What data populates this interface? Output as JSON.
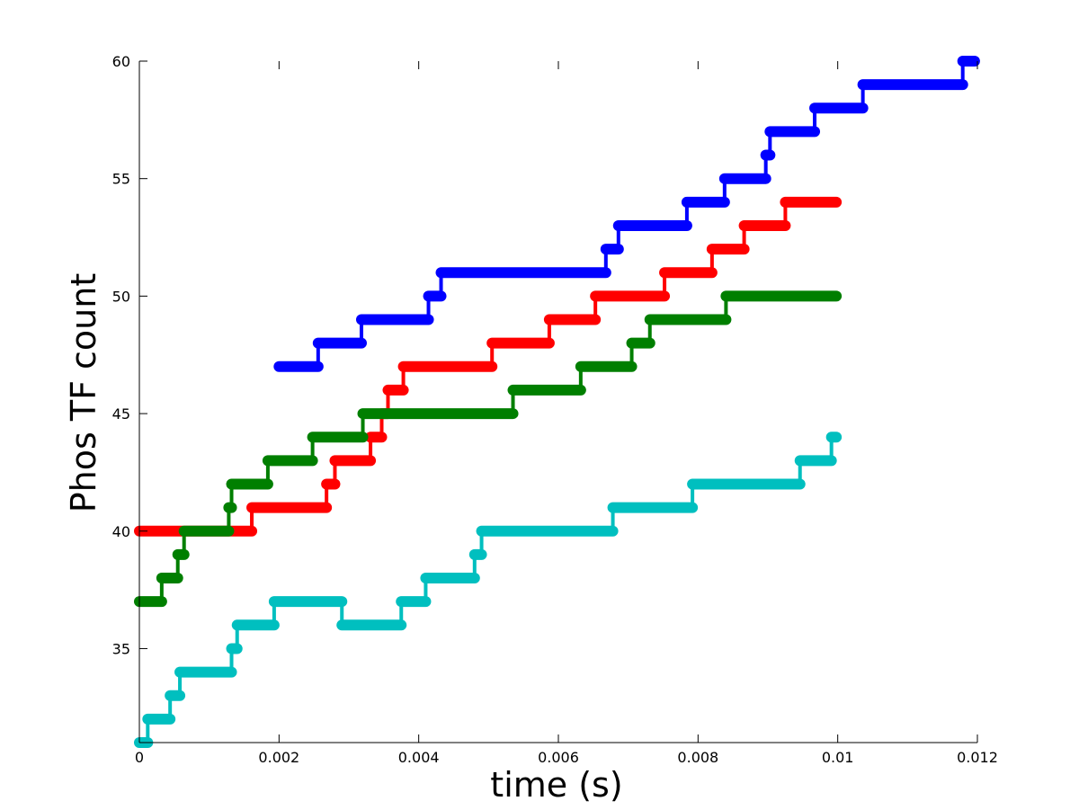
{
  "chart_data": {
    "type": "line",
    "title": "",
    "xlabel": "time (s)",
    "ylabel": "Phos TF count",
    "xlim": [
      0,
      0.012
    ],
    "ylim": [
      31,
      60
    ],
    "xticks": [
      0,
      0.002,
      0.004,
      0.006,
      0.008,
      0.01,
      0.012
    ],
    "xtick_labels": [
      "0",
      "0.002",
      "0.004",
      "0.006",
      "0.008",
      "0.01",
      "0.012"
    ],
    "yticks": [
      35,
      40,
      45,
      50,
      55,
      60
    ],
    "ytick_labels": [
      "35",
      "40",
      "45",
      "50",
      "55",
      "60"
    ],
    "grid": false,
    "series": [
      {
        "color": "#0000ff",
        "step": [
          [
            0.002,
            47
          ],
          [
            0.00256,
            48
          ],
          [
            0.00318,
            49
          ],
          [
            0.00414,
            50
          ],
          [
            0.00432,
            51
          ],
          [
            0.00668,
            52
          ],
          [
            0.00686,
            53
          ],
          [
            0.00784,
            54
          ],
          [
            0.00838,
            55
          ],
          [
            0.00897,
            56
          ],
          [
            0.00903,
            57
          ],
          [
            0.00967,
            58
          ],
          [
            0.01036,
            59
          ],
          [
            0.01179,
            60
          ]
        ],
        "x_end": 0.01196
      },
      {
        "color": "#ff0000",
        "step": [
          [
            0,
            40
          ],
          [
            0.00161,
            41
          ],
          [
            0.00268,
            42
          ],
          [
            0.0028,
            43
          ],
          [
            0.00331,
            44
          ],
          [
            0.00347,
            45
          ],
          [
            0.00356,
            46
          ],
          [
            0.00378,
            47
          ],
          [
            0.00505,
            48
          ],
          [
            0.00587,
            49
          ],
          [
            0.00653,
            50
          ],
          [
            0.00752,
            51
          ],
          [
            0.0082,
            52
          ],
          [
            0.00866,
            53
          ],
          [
            0.00925,
            54
          ]
        ],
        "x_end": 0.00998
      },
      {
        "color": "#007f00",
        "step": [
          [
            0,
            37
          ],
          [
            0.00032,
            38
          ],
          [
            0.00055,
            39
          ],
          [
            0.00064,
            40
          ],
          [
            0.00128,
            41
          ],
          [
            0.00132,
            42
          ],
          [
            0.00184,
            43
          ],
          [
            0.00248,
            44
          ],
          [
            0.0032,
            45
          ],
          [
            0.00535,
            46
          ],
          [
            0.00632,
            47
          ],
          [
            0.00705,
            48
          ],
          [
            0.00731,
            49
          ],
          [
            0.0084,
            50
          ]
        ],
        "x_end": 0.00998
      },
      {
        "color": "#00bfbf",
        "step": [
          [
            0,
            31
          ],
          [
            0.00012,
            32
          ],
          [
            0.00044,
            33
          ],
          [
            0.00058,
            34
          ],
          [
            0.00132,
            35
          ],
          [
            0.0014,
            36
          ],
          [
            0.00193,
            37
          ],
          [
            0.0029,
            36
          ],
          [
            0.00375,
            37
          ],
          [
            0.0041,
            38
          ],
          [
            0.0048,
            39
          ],
          [
            0.0049,
            40
          ],
          [
            0.00678,
            41
          ],
          [
            0.00792,
            42
          ],
          [
            0.00946,
            43
          ],
          [
            0.00991,
            44
          ]
        ],
        "x_end": 0.00998
      }
    ]
  }
}
